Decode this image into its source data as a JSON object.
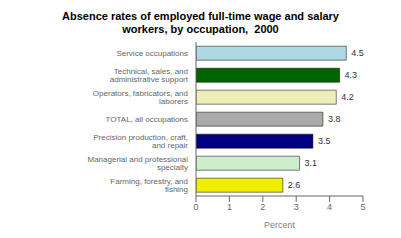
{
  "chart_data": {
    "type": "bar",
    "orientation": "horizontal",
    "title": "Absence rates of employed full-time wage and salary\nworkers, by occupation,  2000",
    "categories": [
      "Farming, forestry, and fishing",
      "Managerial and professional specialty",
      "Precision production, craft, and repair",
      "TOTAL, all occupations",
      "Operators, fabricators, and laborers",
      "Technical, sales, and administrative support",
      "Service occupations"
    ],
    "values": [
      2.6,
      3.1,
      3.5,
      3.8,
      4.2,
      4.3,
      4.5
    ],
    "colors": [
      "#eeee00",
      "#cceecc",
      "#000080",
      "#aaaaaa",
      "#eeeebb",
      "#006400",
      "#add8e6"
    ],
    "xlabel": "Percent",
    "xlim": [
      0,
      5
    ],
    "xticks": [
      0,
      1,
      2,
      3,
      4,
      5
    ],
    "data_labels": true
  }
}
